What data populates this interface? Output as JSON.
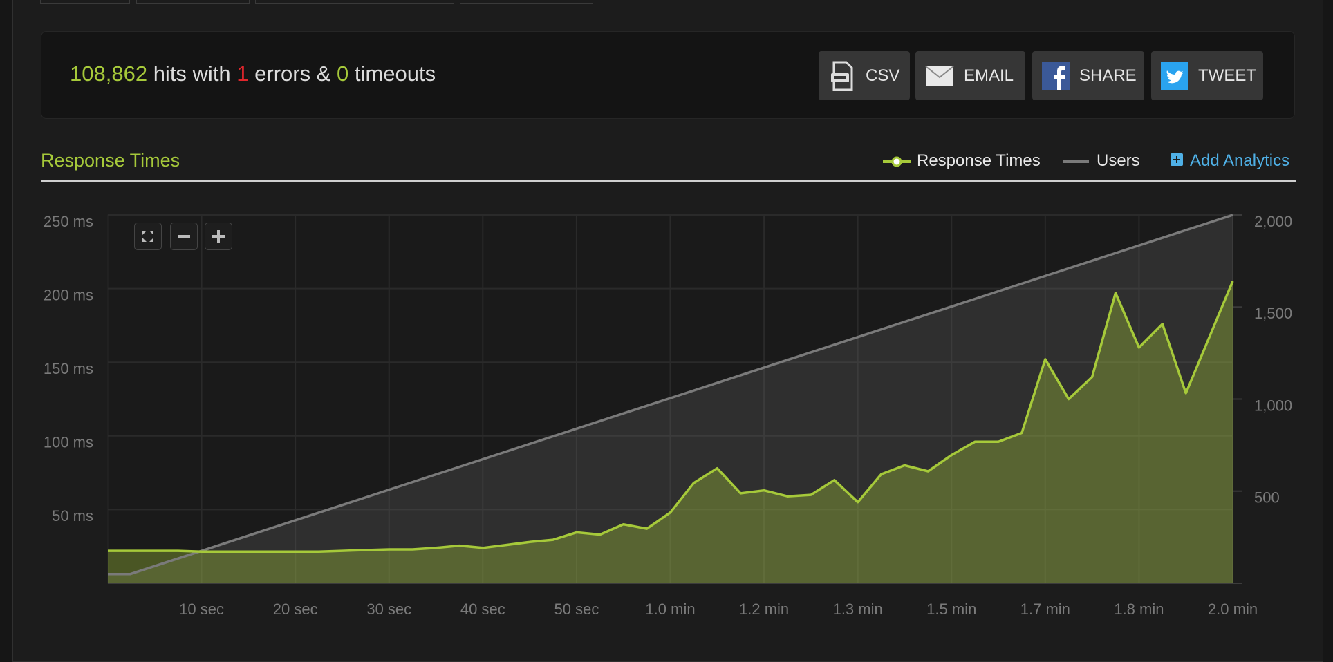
{
  "summary": {
    "hits": "108,862",
    "hits_text": "hits with",
    "errors": "1",
    "errors_text": "errors &",
    "timeouts": "0",
    "timeouts_text": "timeouts"
  },
  "buttons": [
    "CSV",
    "EMAIL",
    "SHARE",
    "TWEET"
  ],
  "section_title": "Response Times",
  "add_analytics": "Add Analytics",
  "chart_data": {
    "type": "line",
    "fill": true,
    "grid": true,
    "xlim": [
      0,
      120
    ],
    "xticks": [
      {
        "value": 10,
        "label": "10 sec"
      },
      {
        "value": 20,
        "label": "20 sec"
      },
      {
        "value": 30,
        "label": "30 sec"
      },
      {
        "value": 40,
        "label": "40 sec"
      },
      {
        "value": 50,
        "label": "50 sec"
      },
      {
        "value": 60,
        "label": "1.0 min"
      },
      {
        "value": 70,
        "label": "1.2 min"
      },
      {
        "value": 80,
        "label": "1.3 min"
      },
      {
        "value": 90,
        "label": "1.5 min"
      },
      {
        "value": 100,
        "label": "1.7 min"
      },
      {
        "value": 110,
        "label": "1.8 min"
      },
      {
        "value": 120,
        "label": "2.0 min"
      }
    ],
    "ylim": [
      0,
      250
    ],
    "yticks": [
      {
        "value": 50,
        "label": "50 ms"
      },
      {
        "value": 100,
        "label": "100 ms"
      },
      {
        "value": 150,
        "label": "150 ms"
      },
      {
        "value": 200,
        "label": "200 ms"
      },
      {
        "value": 250,
        "label": "250 ms"
      }
    ],
    "y2lim": [
      0,
      2000
    ],
    "y2ticks": [
      500,
      {
        "value": 1000,
        "label": "1,000"
      },
      {
        "value": 1500,
        "label": "1,500"
      },
      {
        "value": 2000,
        "label": "2,000"
      }
    ],
    "series": [
      {
        "name": "Response Times",
        "color": "#a6c93a",
        "axis": "y",
        "x": [
          0,
          2.5,
          5,
          7.5,
          10,
          12.5,
          15,
          17.5,
          20,
          22.5,
          25,
          27.5,
          30,
          32.5,
          35,
          37.5,
          40,
          42.5,
          45,
          47.5,
          50,
          52.5,
          55,
          57.5,
          60,
          62.5,
          65,
          67.5,
          70,
          72.5,
          75,
          77.5,
          80,
          82.5,
          85,
          87.5,
          90,
          92.5,
          95,
          97.5,
          100,
          102.5,
          105,
          107.5,
          110,
          112.5,
          115,
          117.5,
          120
        ],
        "values": [
          22,
          22,
          22,
          22,
          21.5,
          21.5,
          21.5,
          21.5,
          21.5,
          21.5,
          22,
          22.5,
          23,
          23,
          24,
          25.5,
          24,
          26,
          28,
          29.5,
          34.5,
          33,
          40,
          37,
          48,
          68,
          78,
          61,
          63,
          59,
          60,
          70,
          55,
          74,
          80,
          76,
          87,
          96,
          96,
          102,
          152,
          125,
          140,
          197,
          160,
          176,
          129,
          167,
          205
        ]
      },
      {
        "name": "Users",
        "color": "#7a7a7a",
        "axis": "y2",
        "x": [
          0,
          2.4,
          120
        ],
        "values": [
          50,
          50,
          2000
        ]
      }
    ]
  }
}
